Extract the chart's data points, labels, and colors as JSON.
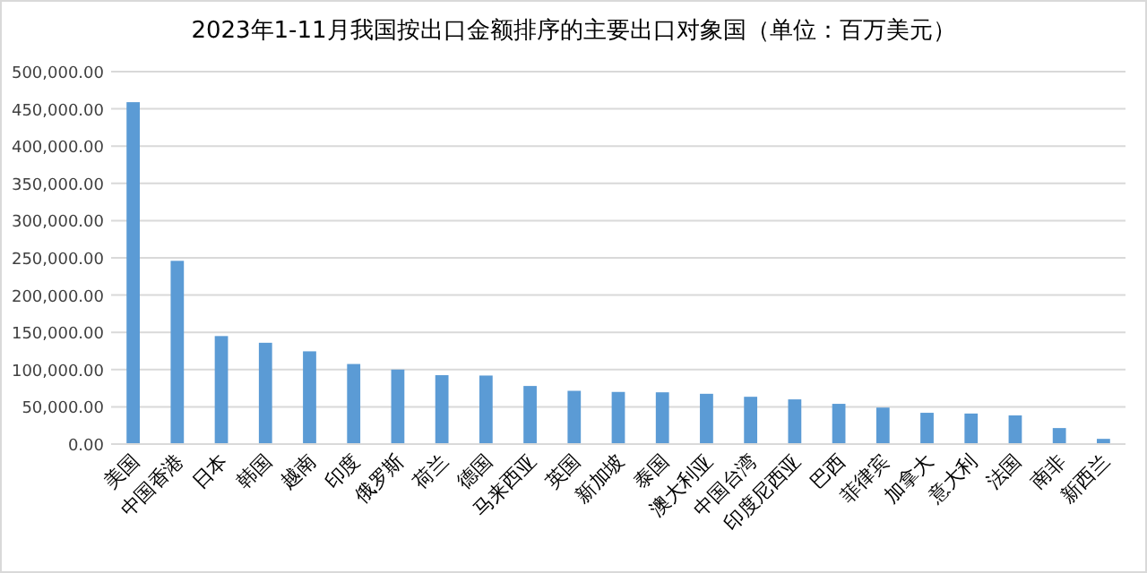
{
  "chart_data": {
    "type": "bar",
    "title": "2023年1-11月我国按出口金额排序的主要出口对象国（单位：百万美元）",
    "categories": [
      "美国",
      "中国香港",
      "日本",
      "韩国",
      "越南",
      "印度",
      "俄罗斯",
      "荷兰",
      "德国",
      "马来西亚",
      "英国",
      "新加坡",
      "泰国",
      "澳大利亚",
      "中国台湾",
      "印度尼西亚",
      "巴西",
      "菲律宾",
      "加拿大",
      "意大利",
      "法国",
      "南非",
      "新西兰"
    ],
    "values": [
      459000,
      246000,
      145000,
      136000,
      124500,
      107500,
      100000,
      92500,
      92000,
      78000,
      71500,
      70000,
      69500,
      67500,
      63500,
      60000,
      54000,
      49000,
      42000,
      41000,
      38500,
      21500,
      7000
    ],
    "color": "#5b9bd5",
    "ylim": [
      0,
      500000
    ],
    "yticks": [
      {
        "value": 0,
        "label": "0.00"
      },
      {
        "value": 50000,
        "label": "50,000.00"
      },
      {
        "value": 100000,
        "label": "100,000.00"
      },
      {
        "value": 150000,
        "label": "150,000.00"
      },
      {
        "value": 200000,
        "label": "200,000.00"
      },
      {
        "value": 250000,
        "label": "250,000.00"
      },
      {
        "value": 300000,
        "label": "300,000.00"
      },
      {
        "value": 350000,
        "label": "350,000.00"
      },
      {
        "value": 400000,
        "label": "400,000.00"
      },
      {
        "value": 450000,
        "label": "450,000.00"
      },
      {
        "value": 500000,
        "label": "500,000.00"
      }
    ],
    "grid": "y"
  }
}
